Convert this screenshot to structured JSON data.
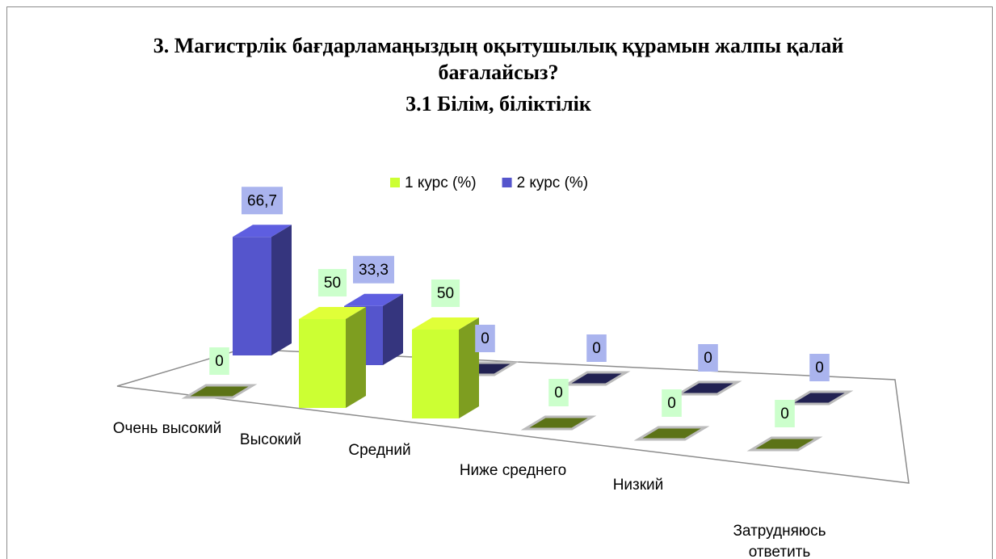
{
  "chart_data": {
    "type": "bar3d",
    "title": "3. Магистрлік бағдарламаңыздың оқытушылық құрамын жалпы қалай бағалайсыз?",
    "subtitle": "3.1 Білім, біліктілік",
    "categories": [
      "Очень высокий",
      "Высокий",
      "Средний",
      "Ниже среднего",
      "Низкий",
      "Затрудняюсь ответить"
    ],
    "series": [
      {
        "name": "1 курс (%)",
        "color": "#ccff33",
        "values": [
          0,
          50,
          50,
          0,
          0,
          0
        ]
      },
      {
        "name": "2 курс (%)",
        "color": "#5555cc",
        "values": [
          66.7,
          33.3,
          0,
          0,
          0,
          0
        ],
        "value_labels": [
          "66,7",
          "33,3",
          "0",
          "0",
          "0",
          "0"
        ]
      }
    ],
    "legend": "top"
  }
}
